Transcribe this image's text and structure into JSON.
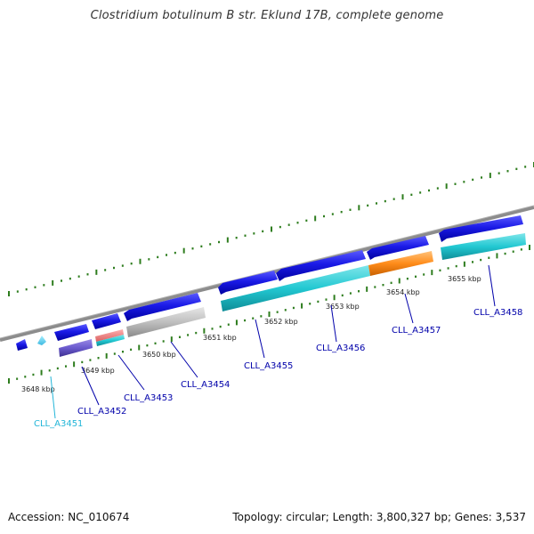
{
  "title": "Clostridium botulinum B str. Eklund 17B, complete genome",
  "footer": {
    "accession": "Accession: NC_010674",
    "summary": "Topology: circular; Length: 3,800,327 bp; Genes: 3,537"
  },
  "ticks": [
    {
      "label": "3648 kbp"
    },
    {
      "label": "3649 kbp"
    },
    {
      "label": "3650 kbp"
    },
    {
      "label": "3651 kbp"
    },
    {
      "label": "3652 kbp"
    },
    {
      "label": "3653 kbp"
    },
    {
      "label": "3654 kbp"
    },
    {
      "label": "3655 kbp"
    }
  ],
  "genes": [
    {
      "id": "CLL_A3451",
      "color": "#22b5d8"
    },
    {
      "id": "CLL_A3452",
      "color": "#0000aa"
    },
    {
      "id": "CLL_A3453",
      "color": "#0000aa"
    },
    {
      "id": "CLL_A3454",
      "color": "#0000aa"
    },
    {
      "id": "CLL_A3455",
      "color": "#0000aa"
    },
    {
      "id": "CLL_A3456",
      "color": "#0000aa"
    },
    {
      "id": "CLL_A3457",
      "color": "#0000aa"
    },
    {
      "id": "CLL_A3458",
      "color": "#0000aa"
    }
  ],
  "colors": {
    "cds_blue": "#1a1ae6",
    "cds_cyan": "#22c8d2",
    "cds_purple": "#6a5acd",
    "cds_salmon": "#f08080",
    "cds_gray": "#bfbfbf",
    "cds_orange": "#ff8c1a",
    "backbone": "#888888",
    "tick_green": "#2e7d1e"
  }
}
